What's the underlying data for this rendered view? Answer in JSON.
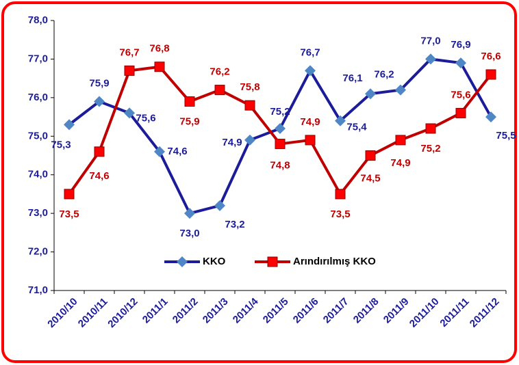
{
  "chart_data": {
    "type": "line",
    "categories": [
      "2010/10",
      "2010/11",
      "2010/12",
      "2011/1",
      "2011/2",
      "2011/3",
      "2011/4",
      "2011/5",
      "2011/6",
      "2011/7",
      "2011/8",
      "2011/9",
      "2011/10",
      "2011/11",
      "2011/12"
    ],
    "series": [
      {
        "name": "KKO",
        "color": "#1c1c9a",
        "marker_color": "#4f86c6",
        "values": [
          75.3,
          75.9,
          75.6,
          74.6,
          73.0,
          73.2,
          74.9,
          75.2,
          76.7,
          75.4,
          76.1,
          76.2,
          77.0,
          76.9,
          75.5
        ],
        "value_labels": [
          "75,3",
          "75,9",
          "75,6",
          "74,6",
          "73,0",
          "73,2",
          "74,9",
          "75,2",
          "76,7",
          "75,4",
          "76,1",
          "76,2",
          "77,0",
          "76,9",
          "75,5"
        ]
      },
      {
        "name": "Arındırılmış KKO",
        "color": "#c00000",
        "marker_color": "#ff0000",
        "values": [
          73.5,
          74.6,
          76.7,
          76.8,
          75.9,
          76.2,
          75.8,
          74.8,
          74.9,
          73.5,
          74.5,
          74.9,
          75.2,
          75.6,
          76.6
        ],
        "value_labels": [
          "73,5",
          "74,6",
          "76,7",
          "76,8",
          "75,9",
          "76,2",
          "75,8",
          "74,8",
          "74,9",
          "73,5",
          "74,5",
          "74,9",
          "75,2",
          "75,6",
          "76,6"
        ]
      }
    ],
    "ylim": [
      71,
      78
    ],
    "yticks": [
      {
        "value": 71,
        "label": "71,0"
      },
      {
        "value": 72,
        "label": "72,0"
      },
      {
        "value": 73,
        "label": "73,0"
      },
      {
        "value": 74,
        "label": "74,0"
      },
      {
        "value": 75,
        "label": "75,0"
      },
      {
        "value": 76,
        "label": "76,0"
      },
      {
        "value": 77,
        "label": "77,0"
      },
      {
        "value": 78,
        "label": "78,0"
      }
    ],
    "grid": false
  }
}
